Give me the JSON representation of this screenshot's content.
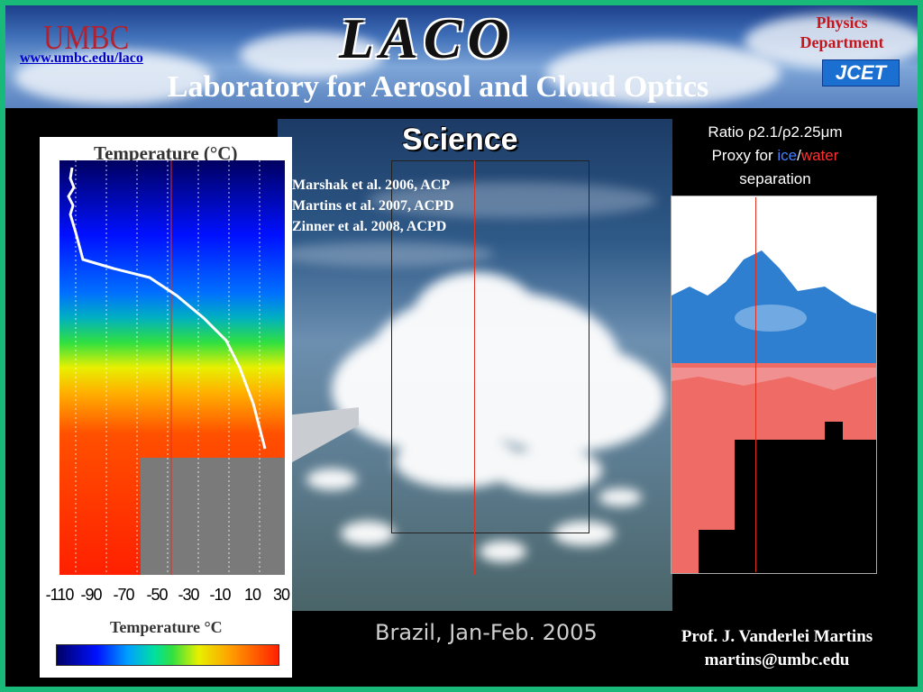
{
  "header": {
    "logo_text": "UMBC",
    "url": "www.umbc.edu/laco",
    "title": "LACO",
    "subtitle": "Laboratory for  Aerosol and Cloud Optics",
    "department": "Physics Department",
    "badge": "JCET"
  },
  "temperature_panel": {
    "title": "Temperature (°C)",
    "ticks": [
      "-110",
      "-90",
      "-70",
      "-50",
      "-30",
      "-10",
      "10",
      "30"
    ],
    "xlabel": "Temperature °C"
  },
  "center": {
    "heading": "Science",
    "references": [
      "Marshak et al. 2006, ACP",
      "Martins et al. 2007, ACPD",
      "Zinner et al. 2008, ACPD"
    ],
    "caption": "Brazil, Jan-Feb. 2005"
  },
  "ratio_panel": {
    "line1": "Ratio ρ2.1/ρ2.25μm",
    "proxy_prefix": "Proxy for ",
    "ice": "ice",
    "slash": "/",
    "water": "water",
    "line3": "separation"
  },
  "contact": {
    "name": "Prof. J. Vanderlei Martins",
    "email": "martins@umbc.edu"
  },
  "colors": {
    "border": "#19b97a",
    "ice": "#4a7dff",
    "water": "#ff3030"
  }
}
